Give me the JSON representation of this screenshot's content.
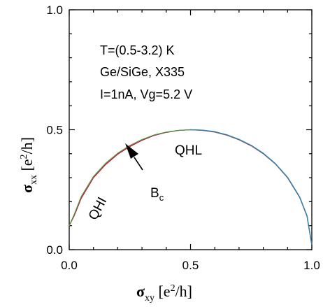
{
  "chart_data": {
    "type": "line",
    "xlabel": {
      "symbol": "σ",
      "sub": "xy",
      "unit_open": " [e",
      "sup": "2",
      "unit_close": "/h]"
    },
    "ylabel": {
      "symbol": "σ",
      "sub": "xx",
      "unit_open": " [e",
      "sup": "2",
      "unit_close": "/h]"
    },
    "xlim": [
      0.0,
      1.0
    ],
    "ylim": [
      0.0,
      1.0
    ],
    "x_ticks": [
      0.0,
      0.5,
      1.0
    ],
    "y_ticks": [
      0.0,
      0.5,
      1.0
    ],
    "x_tick_labels": [
      "0.0",
      "0.5",
      "1.0"
    ],
    "y_tick_labels": [
      "0.0",
      "0.5",
      "1.0"
    ],
    "grid": false,
    "annotations": {
      "lines": [
        "T=(0.5-3.2) K",
        "Ge/SiGe, X335",
        "I=1nA, Vg=5.2 V"
      ],
      "qhl": "QHL",
      "qhi": "QHI",
      "bc": {
        "main": "B",
        "sub": "c"
      }
    },
    "arrow_target": {
      "x": 0.27,
      "y": 0.445
    },
    "series": [
      {
        "color": "#e8002a",
        "x": [
          0.0,
          0.02,
          0.05,
          0.1,
          0.15,
          0.2,
          0.25,
          0.3,
          0.35,
          0.4,
          0.45,
          0.5,
          0.55,
          0.6,
          0.65,
          0.7,
          0.75,
          0.8,
          0.85,
          0.9,
          0.95,
          0.98,
          1.0
        ],
        "y": [
          0.1,
          0.14,
          0.215,
          0.3,
          0.355,
          0.398,
          0.43,
          0.456,
          0.476,
          0.489,
          0.497,
          0.5,
          0.497,
          0.49,
          0.477,
          0.458,
          0.433,
          0.4,
          0.357,
          0.3,
          0.218,
          0.14,
          0.02
        ]
      },
      {
        "color": "#3aa04a",
        "x": [
          0.0,
          0.02,
          0.05,
          0.1,
          0.15,
          0.2,
          0.25,
          0.3,
          0.35,
          0.4,
          0.45,
          0.5,
          0.55,
          0.6,
          0.65,
          0.7,
          0.75,
          0.8,
          0.85,
          0.9,
          0.95,
          0.98,
          1.0
        ],
        "y": [
          0.1,
          0.145,
          0.222,
          0.305,
          0.36,
          0.402,
          0.434,
          0.459,
          0.478,
          0.49,
          0.497,
          0.5,
          0.498,
          0.491,
          0.478,
          0.459,
          0.434,
          0.401,
          0.358,
          0.301,
          0.219,
          0.141,
          0.02
        ]
      },
      {
        "color": "#2a7fc0",
        "x": [
          0.5,
          0.55,
          0.6,
          0.65,
          0.7,
          0.75,
          0.8,
          0.85,
          0.9,
          0.95,
          0.98,
          1.0
        ],
        "y": [
          0.5,
          0.498,
          0.492,
          0.479,
          0.46,
          0.435,
          0.402,
          0.359,
          0.302,
          0.22,
          0.142,
          0.02
        ]
      }
    ]
  }
}
